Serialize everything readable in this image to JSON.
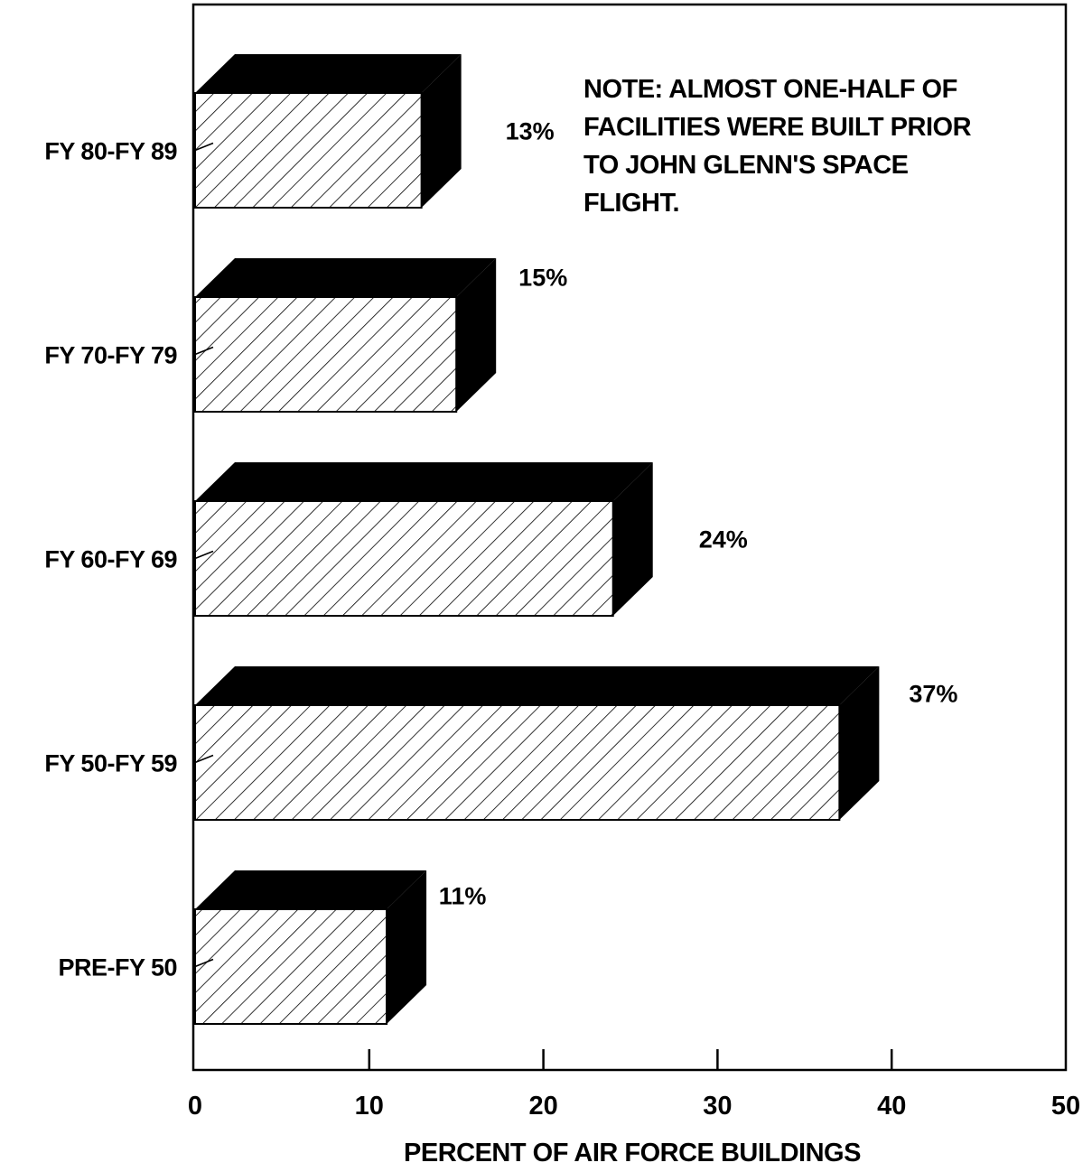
{
  "chart_data": {
    "type": "bar",
    "orientation": "horizontal",
    "categories": [
      "FY 80-FY 89",
      "FY 70-FY 79",
      "FY 60-FY 69",
      "FY 50-FY 59",
      "PRE-FY 50"
    ],
    "values": [
      13,
      15,
      24,
      37,
      11
    ],
    "value_labels": [
      "13%",
      "15%",
      "24%",
      "37%",
      "11%"
    ],
    "xlabel": "PERCENT OF AIR FORCE BUILDINGS",
    "ylabel": "",
    "xlim": [
      0,
      50
    ],
    "xticks": [
      "0",
      "10",
      "20",
      "30",
      "40",
      "50"
    ],
    "grid": false,
    "style": "3d-hatched",
    "colors": {
      "face_hatch": "#000000",
      "depth": "#000000",
      "background": "#ffffff"
    },
    "annotation": {
      "lines": [
        "NOTE:  ALMOST ONE-HALF OF",
        "FACILITIES WERE BUILT PRIOR",
        "TO JOHN GLENN'S SPACE",
        "FLIGHT."
      ]
    }
  }
}
